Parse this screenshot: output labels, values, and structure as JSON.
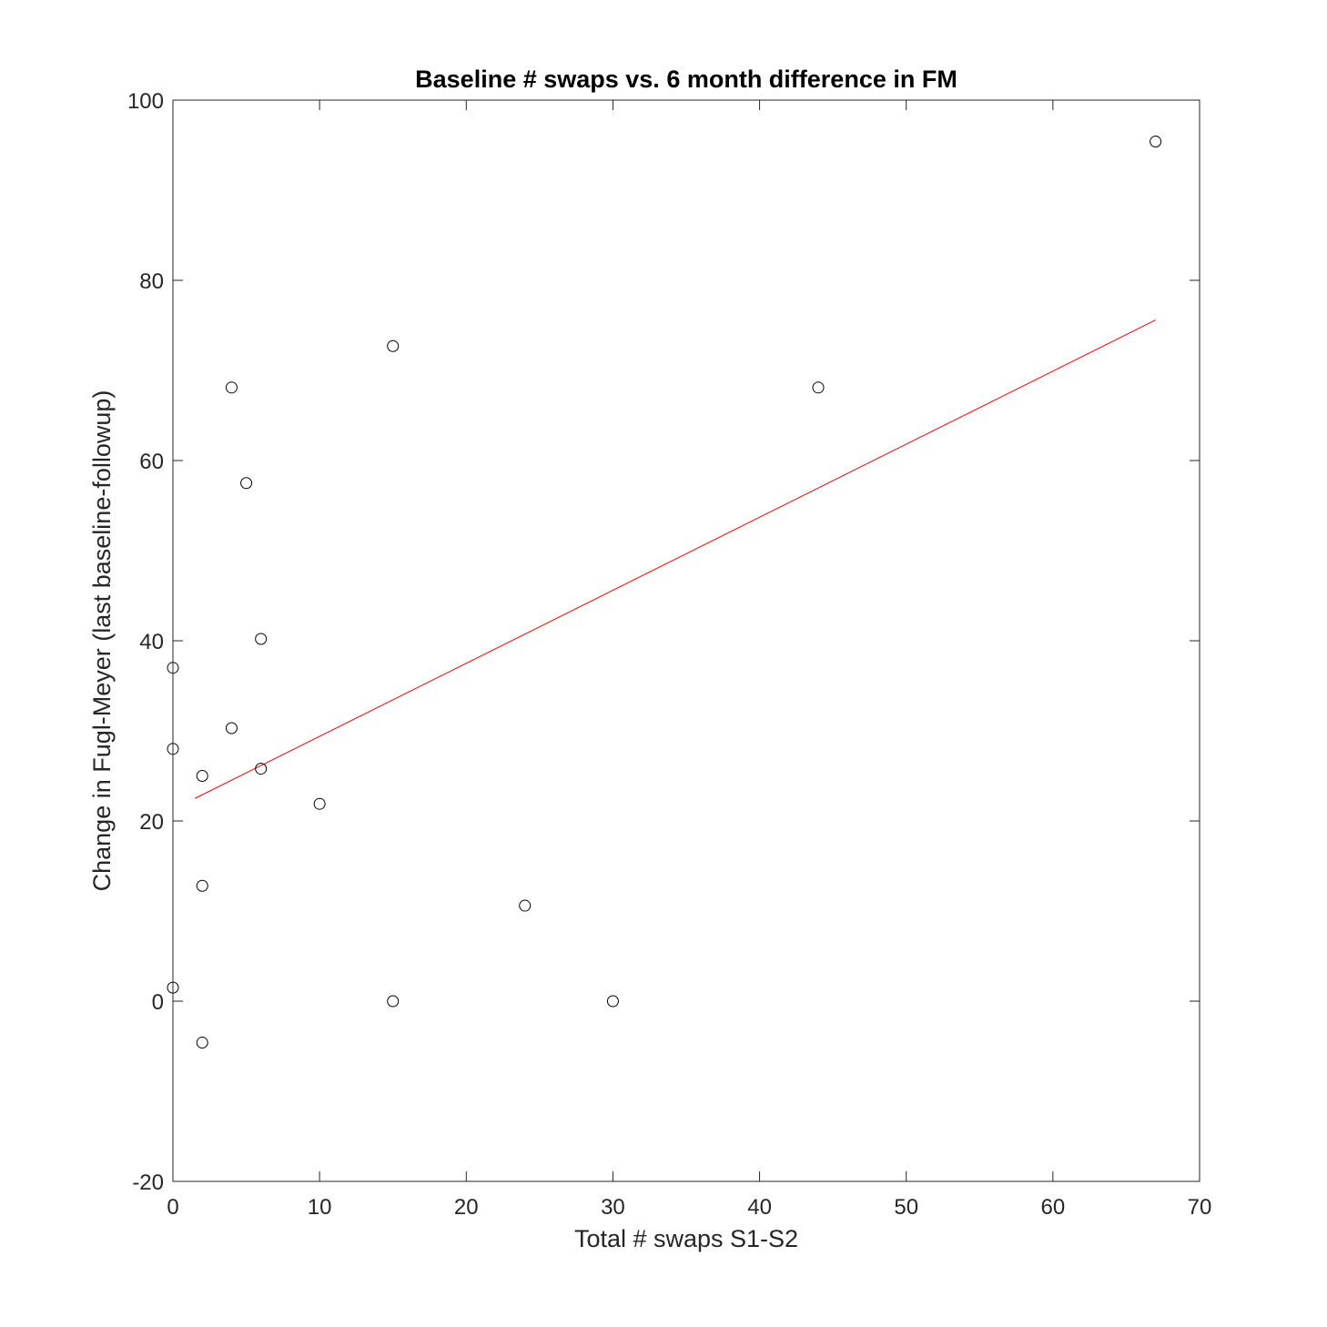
{
  "chart_data": {
    "type": "scatter",
    "title": "Baseline # swaps vs. 6 month difference in FM",
    "xlabel": "Total # swaps S1-S2",
    "ylabel": "Change in Fugl-Meyer (last baseline-followup)",
    "xlim": [
      0,
      70
    ],
    "ylim": [
      -20,
      100
    ],
    "xticks": [
      0,
      10,
      20,
      30,
      40,
      50,
      60,
      70
    ],
    "yticks": [
      -20,
      0,
      20,
      40,
      60,
      80,
      100
    ],
    "x_tick_labels": [
      "0",
      "10",
      "20",
      "30",
      "40",
      "50",
      "60",
      "70"
    ],
    "y_tick_labels": [
      "-20",
      "0",
      "20",
      "40",
      "60",
      "80",
      "100"
    ],
    "grid": false,
    "legend": "none",
    "series": [
      {
        "type": "scatter",
        "marker": "open-circle",
        "color": "#000000",
        "points": [
          {
            "x": 0,
            "y": 37.0
          },
          {
            "x": 0,
            "y": 28.0
          },
          {
            "x": 0,
            "y": 1.5
          },
          {
            "x": 2,
            "y": 25.0
          },
          {
            "x": 2,
            "y": 12.8
          },
          {
            "x": 2,
            "y": -4.6
          },
          {
            "x": 4,
            "y": 68.1
          },
          {
            "x": 4,
            "y": 30.3
          },
          {
            "x": 5,
            "y": 57.5
          },
          {
            "x": 6,
            "y": 40.2
          },
          {
            "x": 6,
            "y": 25.8
          },
          {
            "x": 10,
            "y": 21.9
          },
          {
            "x": 15,
            "y": 72.7
          },
          {
            "x": 15,
            "y": 0.0
          },
          {
            "x": 24,
            "y": 10.6
          },
          {
            "x": 30,
            "y": 0.0
          },
          {
            "x": 44,
            "y": 68.1
          },
          {
            "x": 67,
            "y": 95.4
          }
        ]
      },
      {
        "type": "line",
        "role": "linear-fit",
        "color": "#ff0000",
        "points": [
          {
            "x": 1.5,
            "y": 22.5
          },
          {
            "x": 67,
            "y": 75.6
          }
        ]
      }
    ]
  }
}
